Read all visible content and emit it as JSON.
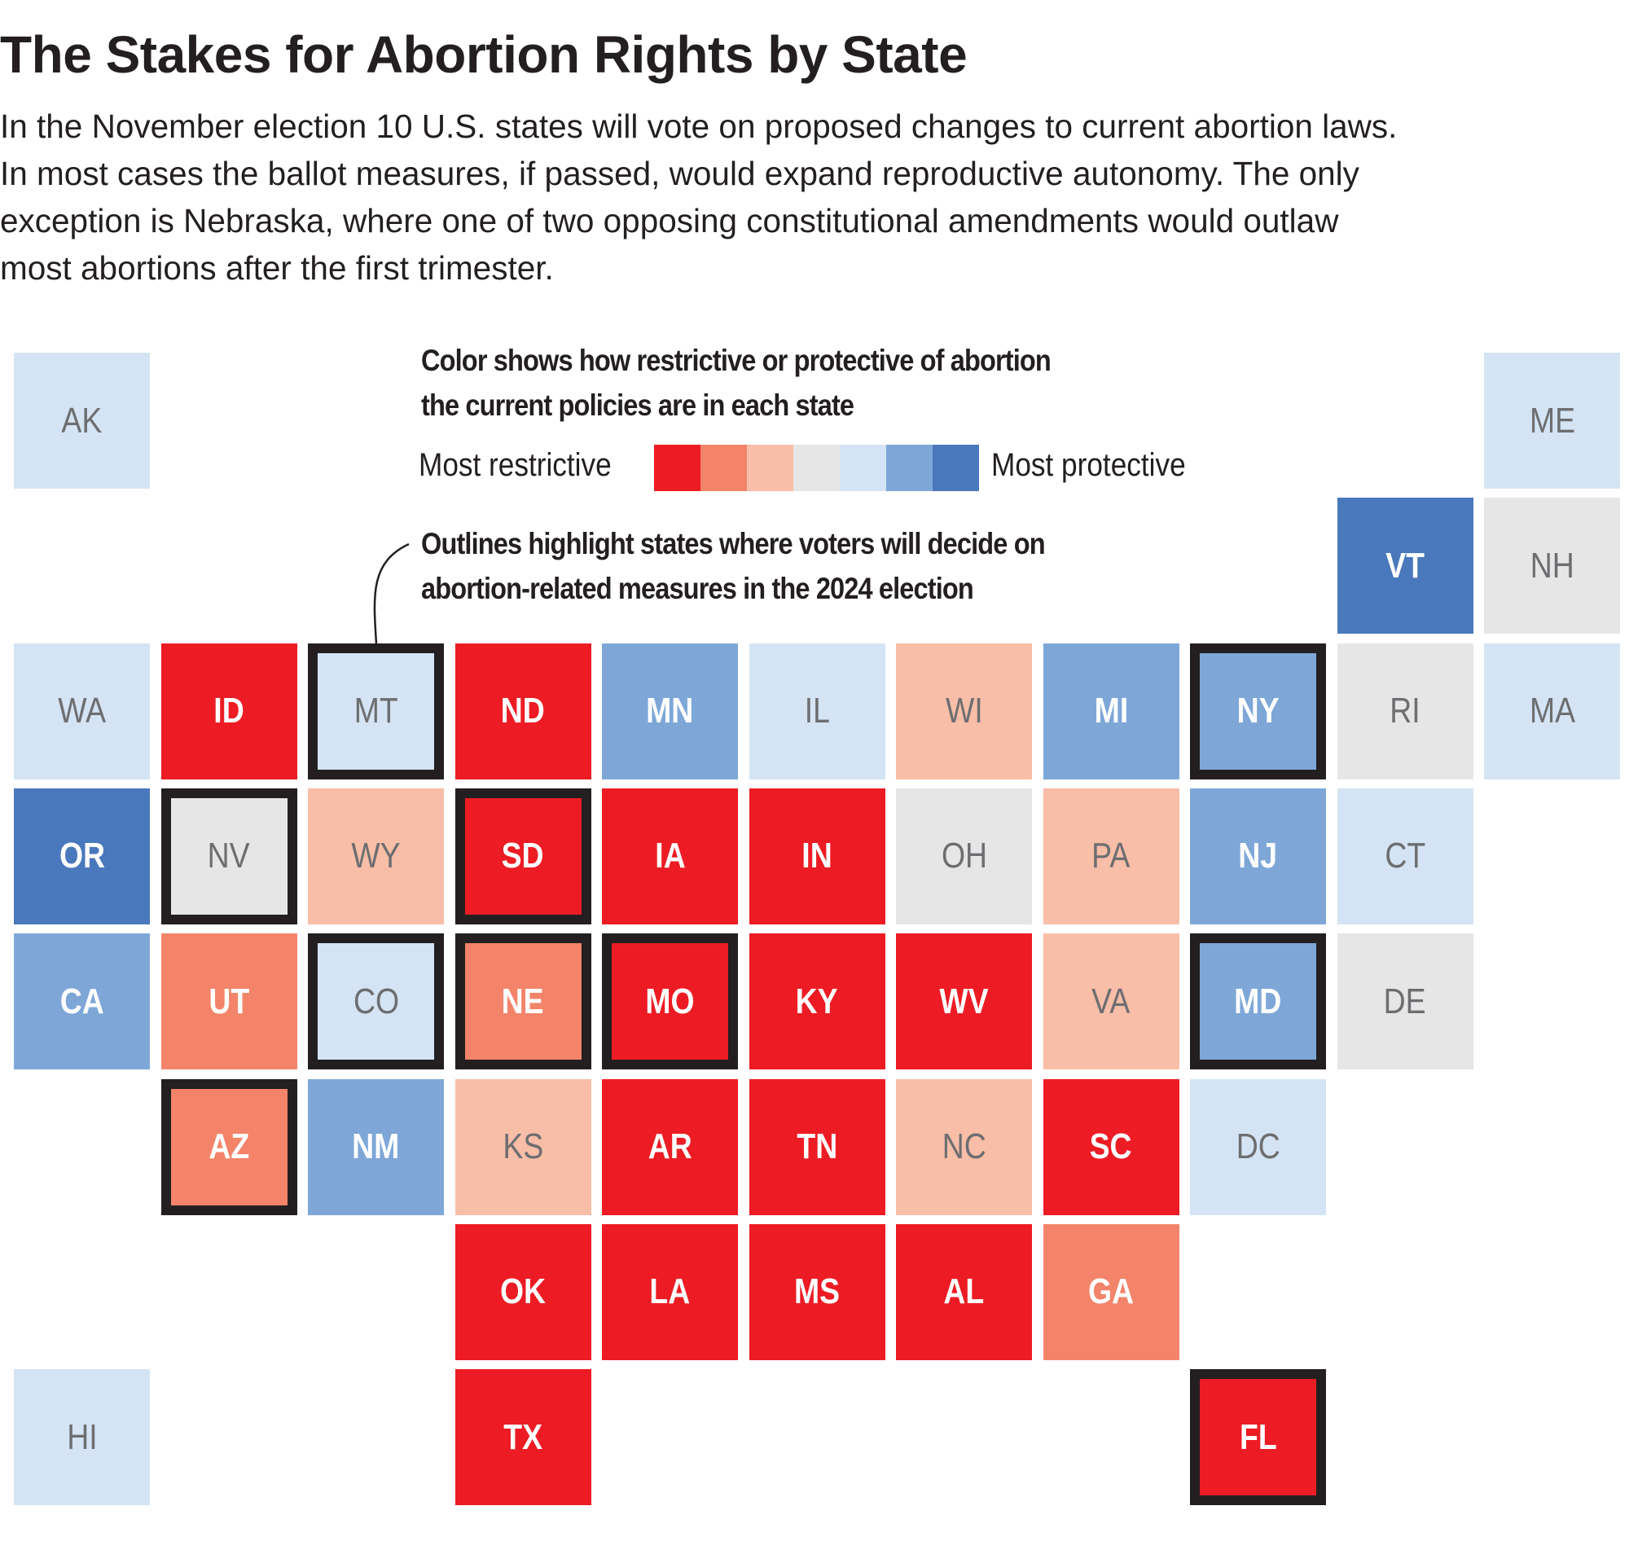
{
  "title": "The Stakes for Abortion Rights by State",
  "intro_lines": [
    "In the November election 10 U.S. states will vote on proposed changes to current abortion laws.",
    "In most cases the ballot measures, if passed, would expand reproductive autonomy. The only",
    "exception is Nebraska, where one of two opposing constitutional amendments would outlaw",
    "most abortions after the first trimester."
  ],
  "legend": {
    "color_heading": [
      "Color shows how restrictive or protective of abortion",
      "the current policies are in each state"
    ],
    "min_label": "Most restrictive",
    "max_label": "Most protective",
    "scale_colors": [
      "#ED1C24",
      "#F3846A",
      "#F9BEA7",
      "#E6E6E6",
      "#D4E4F4",
      "#7EA7D8",
      "#4A78BC"
    ],
    "outline_heading": [
      "Outlines highlight states where voters will decide on",
      "abortion-related measures in the 2024 election"
    ],
    "outline_color": "#231F20"
  },
  "chart_data": {
    "type": "tile-map",
    "scale": "0 = most restrictive, 6 = most protective",
    "states": [
      {
        "abbr": "AK",
        "level": 4,
        "ballot": false
      },
      {
        "abbr": "ME",
        "level": 4,
        "ballot": false
      },
      {
        "abbr": "VT",
        "level": 6,
        "ballot": false
      },
      {
        "abbr": "NH",
        "level": 3,
        "ballot": false
      },
      {
        "abbr": "WA",
        "level": 4,
        "ballot": false
      },
      {
        "abbr": "ID",
        "level": 0,
        "ballot": false
      },
      {
        "abbr": "MT",
        "level": 4,
        "ballot": true
      },
      {
        "abbr": "ND",
        "level": 0,
        "ballot": false
      },
      {
        "abbr": "MN",
        "level": 5,
        "ballot": false
      },
      {
        "abbr": "IL",
        "level": 4,
        "ballot": false
      },
      {
        "abbr": "WI",
        "level": 2,
        "ballot": false
      },
      {
        "abbr": "MI",
        "level": 5,
        "ballot": false
      },
      {
        "abbr": "NY",
        "level": 5,
        "ballot": true
      },
      {
        "abbr": "RI",
        "level": 3,
        "ballot": false
      },
      {
        "abbr": "MA",
        "level": 4,
        "ballot": false
      },
      {
        "abbr": "OR",
        "level": 6,
        "ballot": false
      },
      {
        "abbr": "NV",
        "level": 3,
        "ballot": true
      },
      {
        "abbr": "WY",
        "level": 2,
        "ballot": false
      },
      {
        "abbr": "SD",
        "level": 0,
        "ballot": true
      },
      {
        "abbr": "IA",
        "level": 0,
        "ballot": false
      },
      {
        "abbr": "IN",
        "level": 0,
        "ballot": false
      },
      {
        "abbr": "OH",
        "level": 3,
        "ballot": false
      },
      {
        "abbr": "PA",
        "level": 2,
        "ballot": false
      },
      {
        "abbr": "NJ",
        "level": 5,
        "ballot": false
      },
      {
        "abbr": "CT",
        "level": 4,
        "ballot": false
      },
      {
        "abbr": "CA",
        "level": 5,
        "ballot": false
      },
      {
        "abbr": "UT",
        "level": 1,
        "ballot": false
      },
      {
        "abbr": "CO",
        "level": 4,
        "ballot": true
      },
      {
        "abbr": "NE",
        "level": 1,
        "ballot": true
      },
      {
        "abbr": "MO",
        "level": 0,
        "ballot": true
      },
      {
        "abbr": "KY",
        "level": 0,
        "ballot": false
      },
      {
        "abbr": "WV",
        "level": 0,
        "ballot": false
      },
      {
        "abbr": "VA",
        "level": 2,
        "ballot": false
      },
      {
        "abbr": "MD",
        "level": 5,
        "ballot": true
      },
      {
        "abbr": "DE",
        "level": 3,
        "ballot": false
      },
      {
        "abbr": "AZ",
        "level": 1,
        "ballot": true
      },
      {
        "abbr": "NM",
        "level": 5,
        "ballot": false
      },
      {
        "abbr": "KS",
        "level": 2,
        "ballot": false
      },
      {
        "abbr": "AR",
        "level": 0,
        "ballot": false
      },
      {
        "abbr": "TN",
        "level": 0,
        "ballot": false
      },
      {
        "abbr": "NC",
        "level": 2,
        "ballot": false
      },
      {
        "abbr": "SC",
        "level": 0,
        "ballot": false
      },
      {
        "abbr": "DC",
        "level": 4,
        "ballot": false
      },
      {
        "abbr": "OK",
        "level": 0,
        "ballot": false
      },
      {
        "abbr": "LA",
        "level": 0,
        "ballot": false
      },
      {
        "abbr": "MS",
        "level": 0,
        "ballot": false
      },
      {
        "abbr": "AL",
        "level": 0,
        "ballot": false
      },
      {
        "abbr": "GA",
        "level": 1,
        "ballot": false
      },
      {
        "abbr": "HI",
        "level": 4,
        "ballot": false
      },
      {
        "abbr": "TX",
        "level": 0,
        "ballot": false
      },
      {
        "abbr": "FL",
        "level": 0,
        "ballot": true
      }
    ]
  }
}
